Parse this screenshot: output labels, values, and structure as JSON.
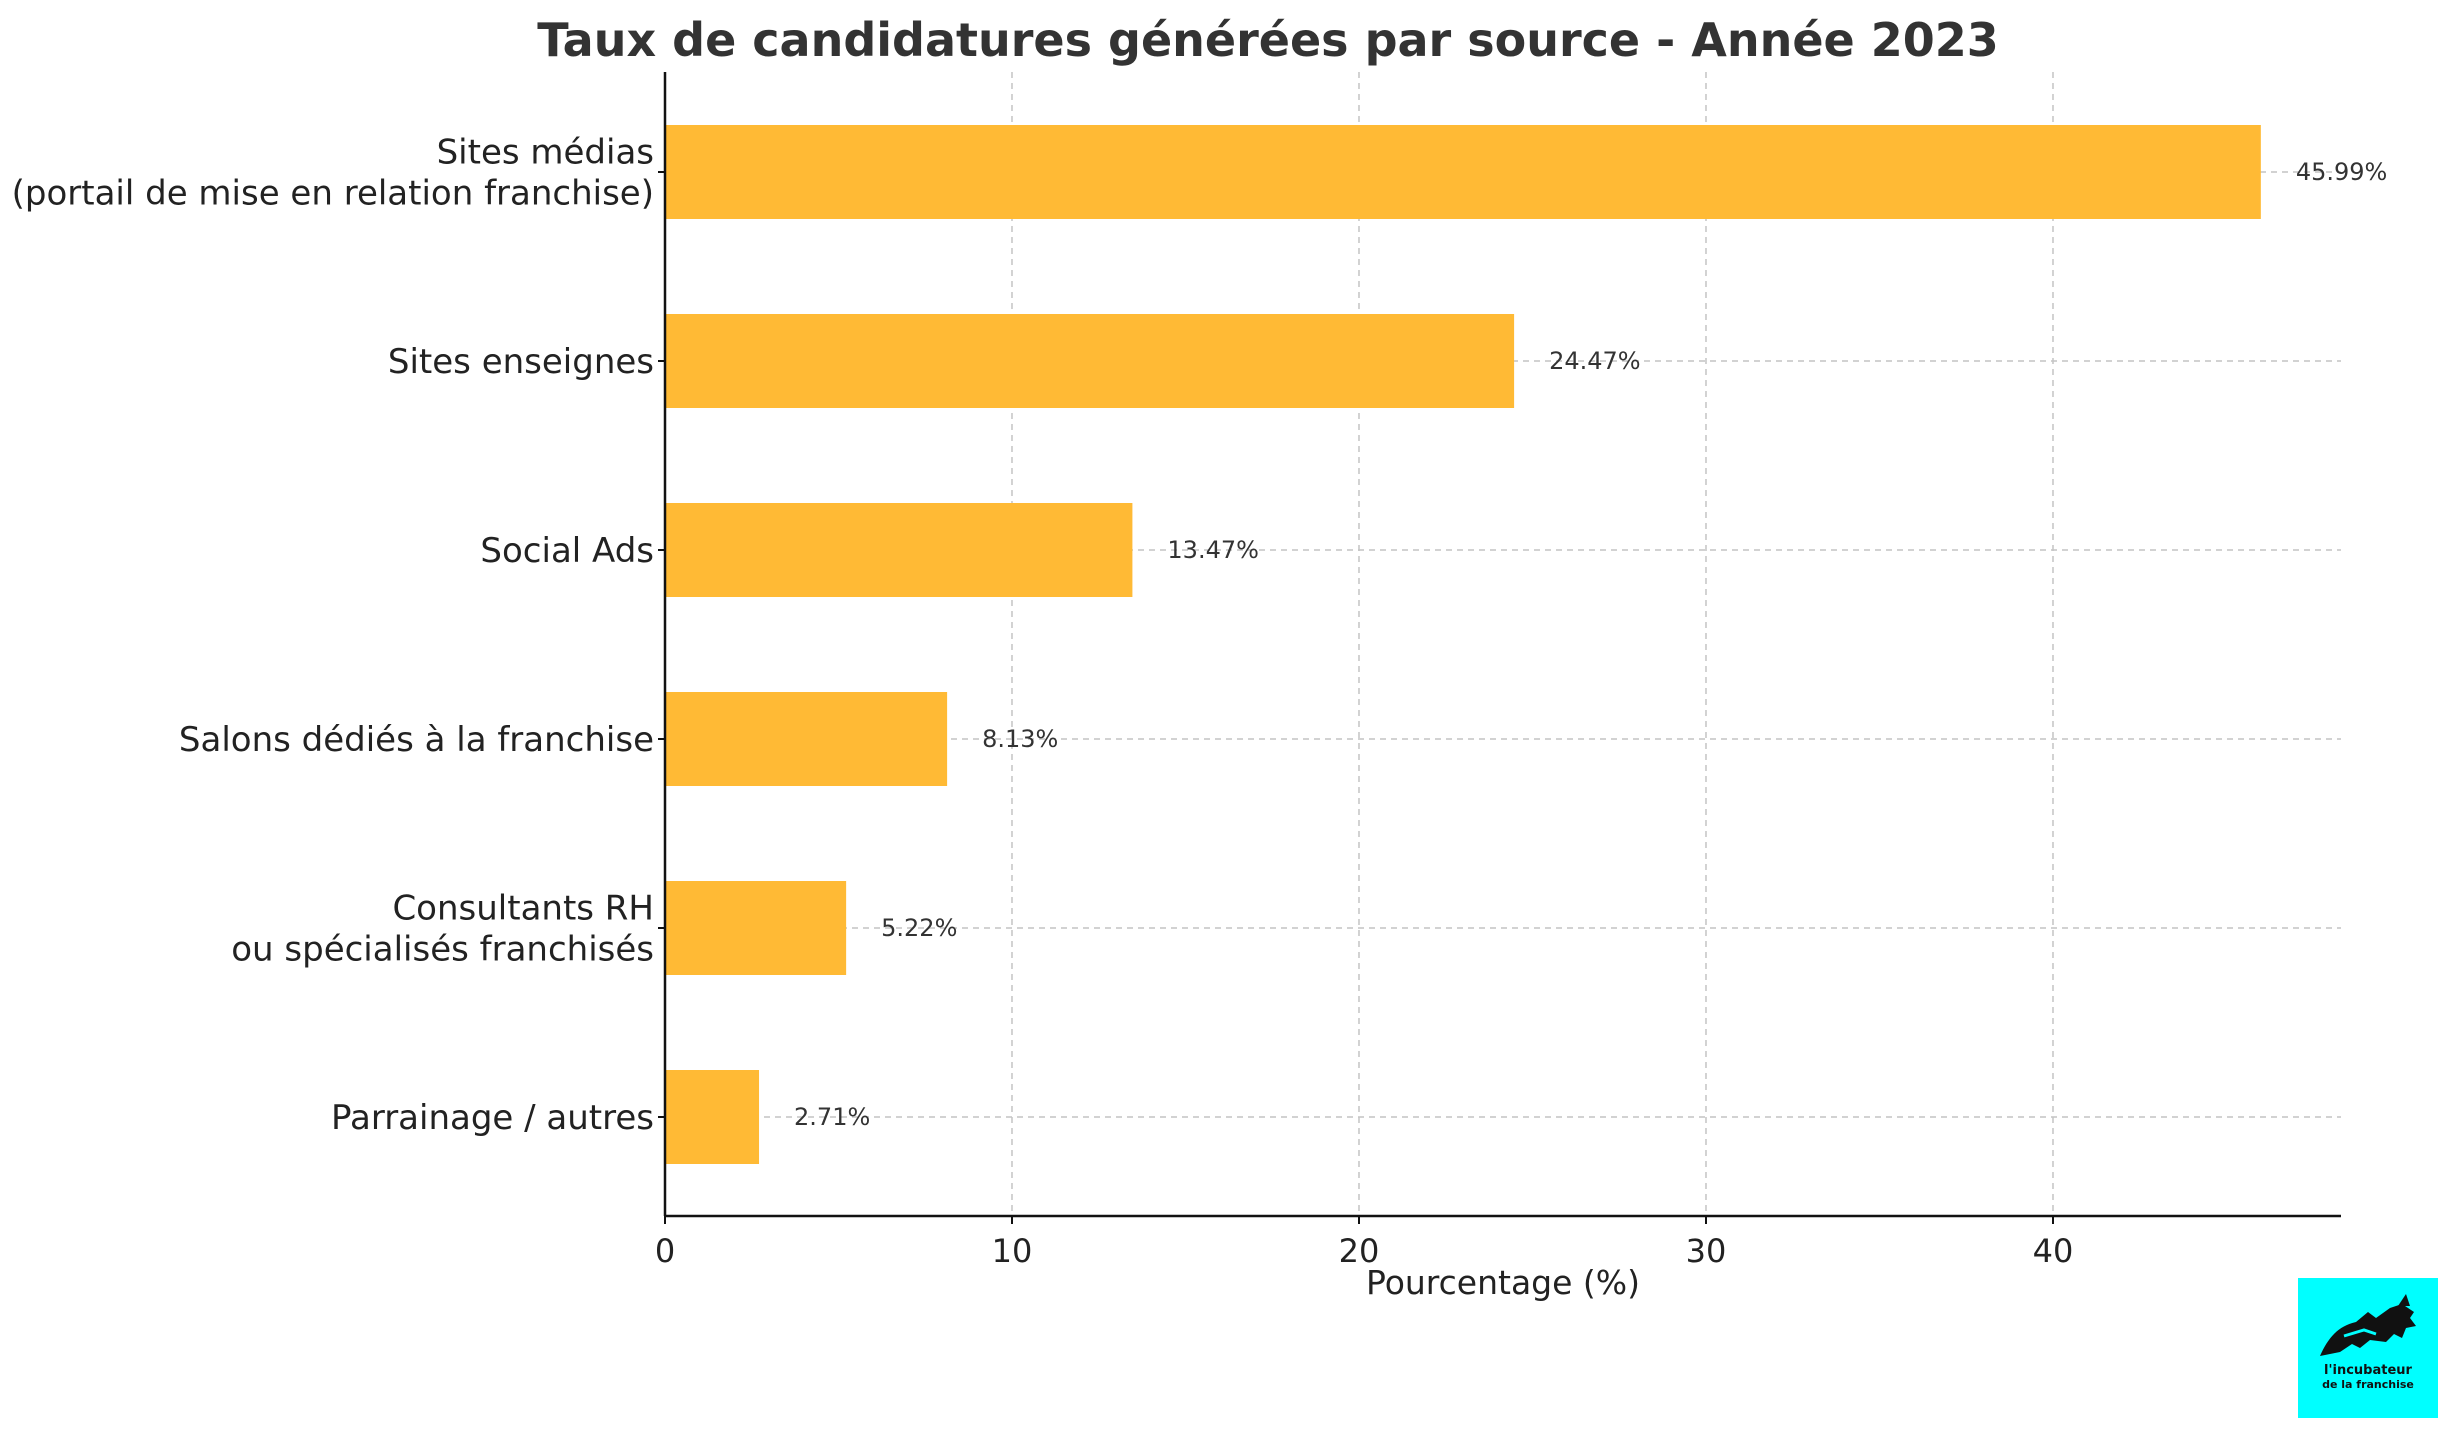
{
  "chart_data": {
    "type": "bar",
    "orientation": "horizontal",
    "title": "Taux de candidatures générées par source - Année 2023",
    "xlabel": "Pourcentage (%)",
    "ylabel": "",
    "categories": [
      [
        "Sites médias",
        "(portail de mise en relation franchise)"
      ],
      [
        "Sites enseignes"
      ],
      [
        "Social Ads"
      ],
      [
        "Salons dédiés à la franchise"
      ],
      [
        "Consultants RH",
        "ou spécialisés franchisés"
      ],
      [
        "Parrainage / autres"
      ]
    ],
    "values": [
      45.99,
      24.47,
      13.47,
      8.13,
      5.22,
      2.71
    ],
    "data_labels": [
      "45.99%",
      "24.47%",
      "13.47%",
      "8.13%",
      "5.22%",
      "2.71%"
    ],
    "xlim": [
      0,
      48.3
    ],
    "xticks": [
      0,
      10,
      20,
      30,
      40
    ],
    "grid": true,
    "bar_color": "#FFBA35"
  },
  "logo": {
    "line1": "l'incubateur",
    "line2": "de la franchise",
    "background": "#00FFFF"
  }
}
